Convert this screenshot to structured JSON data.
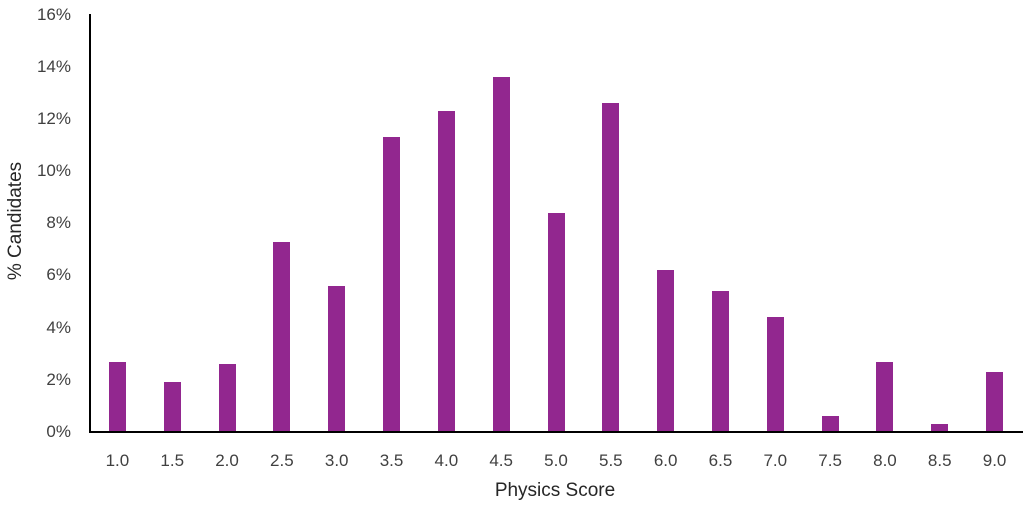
{
  "chart_data": {
    "type": "bar",
    "title": "",
    "xlabel": "Physics Score",
    "ylabel": "% Candidates",
    "categories": [
      "1.0",
      "1.5",
      "2.0",
      "2.5",
      "3.0",
      "3.5",
      "4.0",
      "4.5",
      "5.0",
      "5.5",
      "6.0",
      "6.5",
      "7.0",
      "7.5",
      "8.0",
      "8.5",
      "9.0"
    ],
    "values": [
      2.7,
      1.9,
      2.6,
      7.3,
      5.6,
      11.3,
      12.3,
      13.6,
      8.4,
      12.6,
      6.2,
      5.4,
      4.4,
      0.6,
      2.7,
      0.3,
      2.3
    ],
    "ylim": [
      0,
      16
    ],
    "yticks": [
      0,
      2,
      4,
      6,
      8,
      10,
      12,
      14,
      16
    ],
    "ytick_labels": [
      "0%",
      "2%",
      "4%",
      "6%",
      "8%",
      "10%",
      "12%",
      "14%",
      "16%"
    ],
    "grid": false,
    "legend": null,
    "bar_color": "#92278F"
  }
}
